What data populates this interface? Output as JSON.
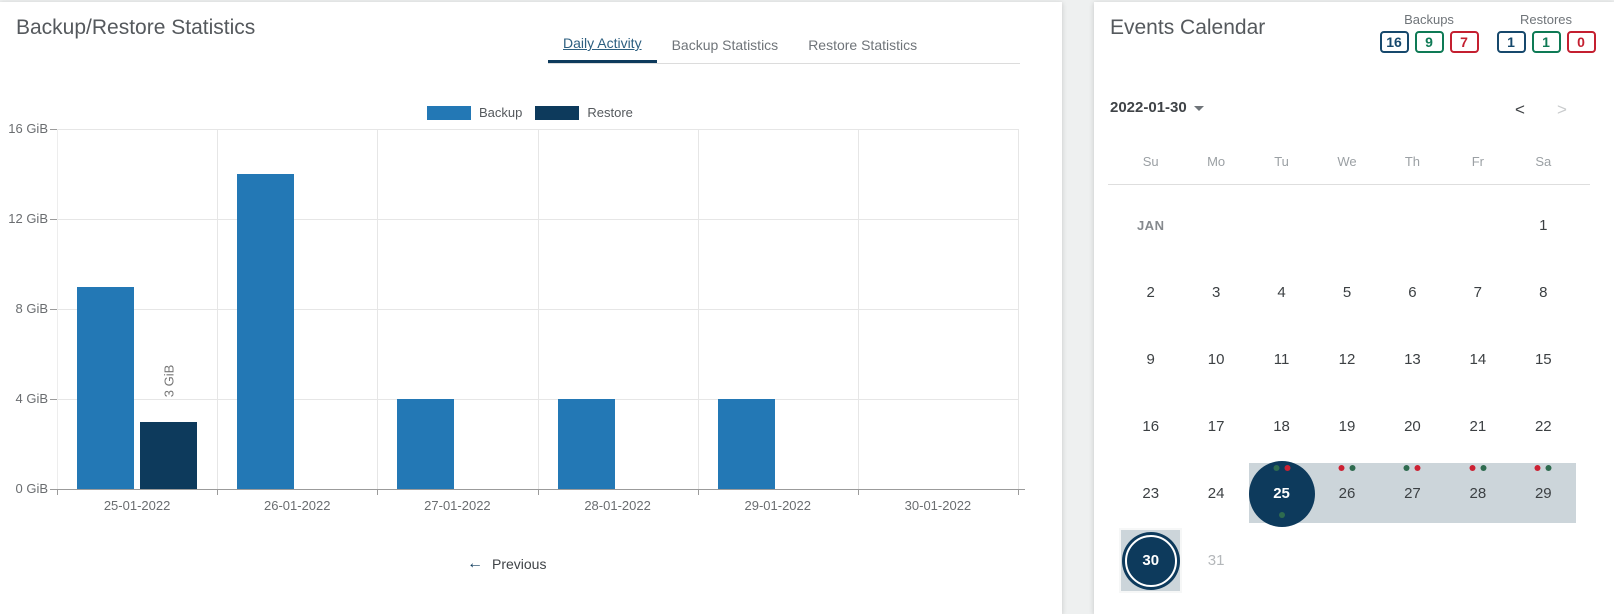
{
  "colors": {
    "backup_blue": "#2378b5",
    "restore_navy": "#0d3a5c",
    "badge_navy": "#16486c",
    "badge_green": "#0e7a55",
    "badge_red": "#c41f30",
    "event_dot_green": "#2e6b4f",
    "event_dot_red": "#cc2133",
    "week_band": "#ccd5da",
    "active_tab": "#2d5f80"
  },
  "left_panel": {
    "title": "Backup/Restore Statistics",
    "tabs": [
      {
        "label": "Daily Activity",
        "active": true
      },
      {
        "label": "Backup Statistics",
        "active": false
      },
      {
        "label": "Restore Statistics",
        "active": false
      }
    ],
    "previous_label": "Previous",
    "previous_arrow": "←"
  },
  "chart_data": {
    "type": "bar",
    "title": "Daily Activity",
    "categories": [
      "25-01-2022",
      "26-01-2022",
      "27-01-2022",
      "28-01-2022",
      "29-01-2022",
      "30-01-2022"
    ],
    "series": [
      {
        "name": "Backup",
        "color": "#2378b5",
        "values": [
          9,
          14,
          4,
          4,
          4,
          0
        ]
      },
      {
        "name": "Restore",
        "color": "#0d3a5c",
        "values": [
          3,
          0,
          0,
          0,
          0,
          0
        ]
      }
    ],
    "unit": "GiB",
    "ylim": [
      0,
      16
    ],
    "yticks": [
      {
        "value": 0,
        "label": "0 GiB"
      },
      {
        "value": 4,
        "label": "4 GiB"
      },
      {
        "value": 8,
        "label": "8 GiB"
      },
      {
        "value": 12,
        "label": "12 GiB"
      },
      {
        "value": 16,
        "label": "16 GiB"
      }
    ],
    "bar_labels": [
      {
        "series": 1,
        "category": 0,
        "label": "3 GiB"
      }
    ],
    "legend": [
      "Backup",
      "Restore"
    ],
    "legend_position": "top",
    "grid": true
  },
  "right_panel": {
    "title": "Events Calendar",
    "counters": [
      {
        "label": "Backups",
        "badges": [
          {
            "value": "16",
            "color": "navy"
          },
          {
            "value": "9",
            "color": "green"
          },
          {
            "value": "7",
            "color": "red"
          }
        ]
      },
      {
        "label": "Restores",
        "badges": [
          {
            "value": "1",
            "color": "navy"
          },
          {
            "value": "1",
            "color": "green"
          },
          {
            "value": "0",
            "color": "red"
          }
        ]
      }
    ],
    "calendar": {
      "selected_date": "2022-01-30",
      "prev_arrow": "<",
      "next_arrow": ">",
      "next_disabled": true,
      "weekdays": [
        "Su",
        "Mo",
        "Tu",
        "We",
        "Th",
        "Fr",
        "Sa"
      ],
      "month_label": "JAN",
      "rows": [
        [
          {
            "label": "JAN",
            "month": true
          },
          {},
          {},
          {},
          {},
          {},
          {
            "label": "1"
          }
        ],
        [
          {
            "label": "2"
          },
          {
            "label": "3"
          },
          {
            "label": "4"
          },
          {
            "label": "5"
          },
          {
            "label": "6"
          },
          {
            "label": "7"
          },
          {
            "label": "8"
          }
        ],
        [
          {
            "label": "9"
          },
          {
            "label": "10"
          },
          {
            "label": "11"
          },
          {
            "label": "12"
          },
          {
            "label": "13"
          },
          {
            "label": "14"
          },
          {
            "label": "15"
          }
        ],
        [
          {
            "label": "16"
          },
          {
            "label": "17"
          },
          {
            "label": "18"
          },
          {
            "label": "19"
          },
          {
            "label": "20"
          },
          {
            "label": "21"
          },
          {
            "label": "22"
          }
        ],
        [
          {
            "label": "23"
          },
          {
            "label": "24"
          },
          {
            "label": "25",
            "band": true,
            "circle": true,
            "dots": [
              "green",
              "red"
            ],
            "dot_below": "green"
          },
          {
            "label": "26",
            "band": true,
            "dots": [
              "red",
              "green"
            ]
          },
          {
            "label": "27",
            "band": true,
            "dots": [
              "green",
              "red"
            ]
          },
          {
            "label": "28",
            "band": true,
            "dots": [
              "red",
              "green"
            ]
          },
          {
            "label": "29",
            "band": true,
            "dots": [
              "red",
              "green"
            ]
          }
        ],
        [
          {
            "label": "30",
            "ring": true,
            "highlight": true
          },
          {
            "label": "31",
            "muted": true
          },
          {},
          {},
          {},
          {},
          {}
        ]
      ]
    }
  }
}
